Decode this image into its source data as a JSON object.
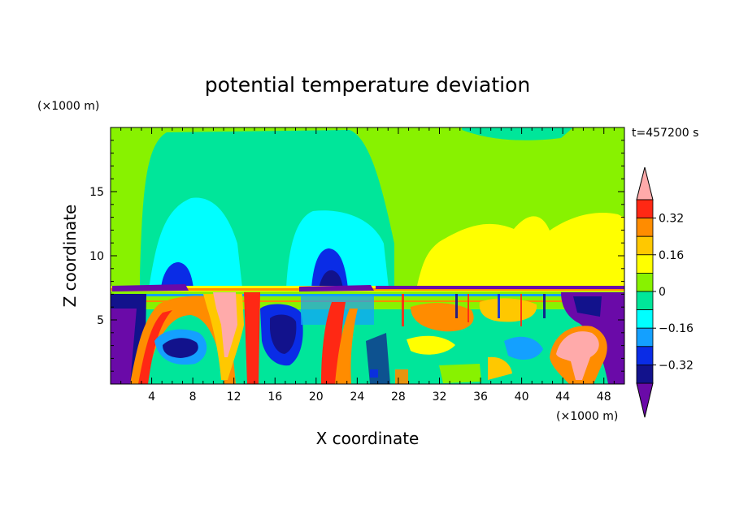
{
  "chart_data": {
    "type": "heatmap",
    "title": "potential temperature deviation",
    "xlabel": "X coordinate",
    "ylabel": "Z coordinate",
    "x_unit": "(×1000 m)",
    "y_unit": "(×1000 m)",
    "time_label": "t=457200 s",
    "xlim": [
      0,
      50
    ],
    "ylim": [
      0,
      20
    ],
    "x_ticks": [
      "4",
      "8",
      "12",
      "16",
      "20",
      "24",
      "28",
      "32",
      "36",
      "40",
      "44",
      "48"
    ],
    "y_ticks": [
      "5",
      "10",
      "15"
    ],
    "colorbar": {
      "labels": [
        "0.32",
        "0.16",
        "0",
        "−0.16",
        "−0.32"
      ],
      "levels": [
        -0.4,
        -0.32,
        -0.24,
        -0.16,
        -0.08,
        0,
        0.08,
        0.16,
        0.24,
        0.32,
        0.4
      ],
      "colors": [
        "#6a0aa8",
        "#12128c",
        "#0a2ce6",
        "#14a0ff",
        "#00ffff",
        "#00e69a",
        "#88f200",
        "#ffff00",
        "#ffc800",
        "#ff8c00",
        "#ff2814",
        "#ffaaaa"
      ]
    }
  }
}
